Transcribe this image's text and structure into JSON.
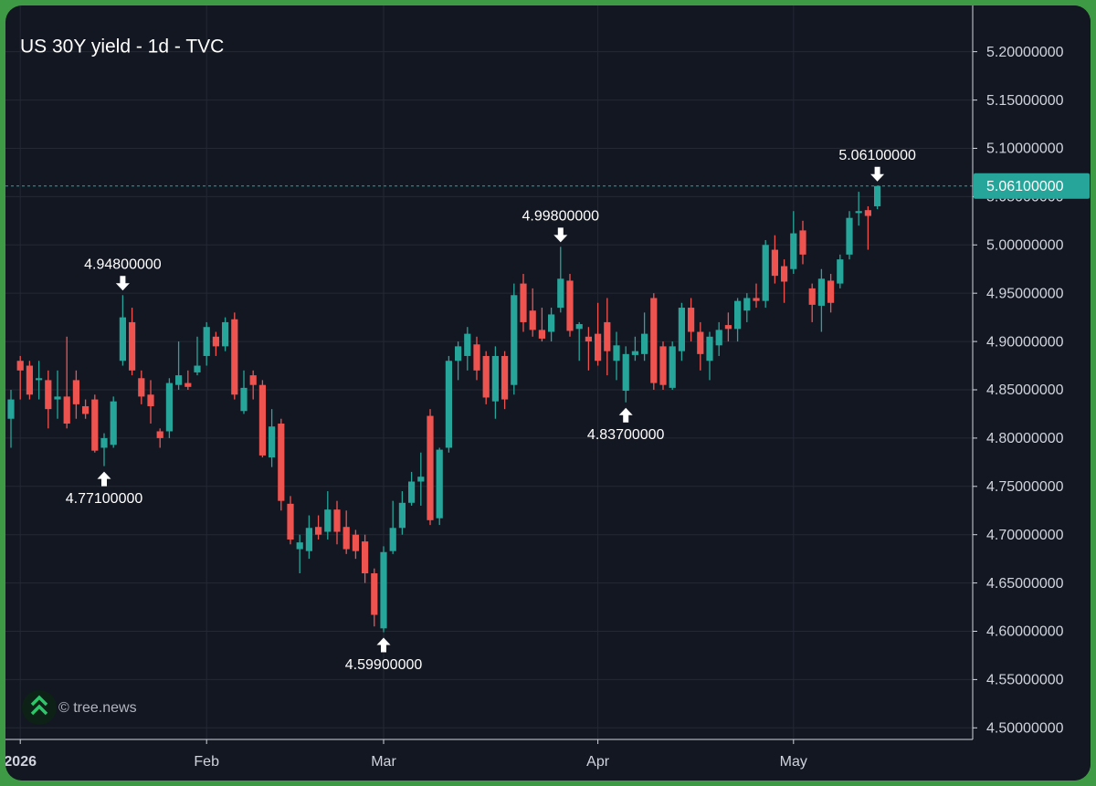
{
  "chart_data": {
    "type": "candlestick",
    "title": "US 30Y yield - 1d - TVC",
    "watermark": "© tree.news",
    "categories": [
      null,
      "2026",
      null,
      null,
      null,
      null,
      null,
      null,
      null,
      null,
      null,
      null,
      null,
      null,
      null,
      null,
      null,
      null,
      null,
      null,
      null,
      "Feb",
      null,
      null,
      null,
      null,
      null,
      null,
      null,
      null,
      null,
      null,
      null,
      null,
      null,
      null,
      null,
      null,
      null,
      null,
      "Mar",
      null,
      null,
      null,
      null,
      null,
      null,
      null,
      null,
      null,
      null,
      null,
      null,
      null,
      null,
      null,
      null,
      null,
      null,
      null,
      null,
      null,
      null,
      "Apr",
      null,
      null,
      null,
      null,
      null,
      null,
      null,
      null,
      null,
      null,
      null,
      null,
      null,
      null,
      null,
      null,
      null,
      null,
      null,
      null,
      "May",
      null,
      null,
      null,
      null,
      null,
      null,
      null,
      null,
      null
    ],
    "open": [
      4.82,
      4.88,
      4.875,
      4.86,
      4.86,
      4.84,
      4.843,
      4.86,
      4.833,
      4.84,
      4.79,
      4.793,
      4.88,
      4.92,
      4.862,
      4.845,
      4.807,
      4.807,
      4.855,
      4.857,
      4.868,
      4.885,
      4.905,
      4.895,
      4.923,
      4.828,
      4.865,
      4.855,
      4.78,
      4.815,
      4.732,
      4.685,
      4.683,
      4.708,
      4.703,
      4.726,
      4.708,
      4.7,
      4.693,
      4.66,
      4.603,
      4.683,
      4.707,
      4.733,
      4.755,
      4.823,
      4.717,
      4.79,
      4.88,
      4.885,
      4.897,
      4.885,
      4.838,
      4.885,
      4.855,
      4.96,
      4.932,
      4.912,
      4.91,
      4.935,
      4.963,
      4.913,
      4.905,
      4.908,
      4.92,
      4.88,
      4.849,
      4.886,
      4.887,
      4.945,
      4.895,
      4.852,
      4.89,
      4.935,
      4.91,
      4.88,
      4.896,
      4.917,
      4.913,
      4.932,
      4.945,
      4.942,
      4.995,
      4.978,
      4.975,
      5.015,
      4.955,
      4.937,
      4.963,
      4.96,
      4.99,
      5.033,
      5.036,
      5.04
    ],
    "high": [
      4.85,
      4.885,
      4.88,
      4.88,
      4.87,
      4.87,
      4.905,
      4.87,
      4.84,
      4.845,
      4.805,
      4.843,
      4.948,
      4.935,
      4.87,
      4.86,
      4.81,
      4.862,
      4.9,
      4.87,
      4.905,
      4.92,
      4.91,
      4.925,
      4.93,
      4.87,
      4.87,
      4.86,
      4.83,
      4.82,
      4.74,
      4.7,
      4.72,
      4.72,
      4.745,
      4.735,
      4.725,
      4.705,
      4.7,
      4.665,
      4.688,
      4.735,
      4.745,
      4.765,
      4.785,
      4.83,
      4.79,
      4.885,
      4.9,
      4.915,
      4.905,
      4.89,
      4.895,
      4.89,
      4.96,
      4.97,
      4.955,
      4.935,
      4.935,
      4.998,
      4.97,
      4.92,
      4.915,
      4.94,
      4.945,
      4.91,
      4.895,
      4.905,
      4.93,
      4.95,
      4.9,
      4.9,
      4.94,
      4.945,
      4.92,
      4.91,
      4.92,
      4.93,
      4.945,
      4.95,
      4.96,
      5.005,
      5.01,
      4.985,
      5.035,
      5.025,
      4.96,
      4.975,
      4.97,
      4.99,
      5.035,
      5.055,
      5.04,
      5.061
    ],
    "low": [
      4.79,
      4.84,
      4.84,
      4.84,
      4.81,
      4.82,
      4.81,
      4.82,
      4.82,
      4.785,
      4.771,
      4.79,
      4.875,
      4.865,
      4.835,
      4.815,
      4.79,
      4.8,
      4.85,
      4.85,
      4.865,
      4.875,
      4.885,
      4.89,
      4.84,
      4.825,
      4.84,
      4.78,
      4.77,
      4.725,
      4.69,
      4.66,
      4.675,
      4.695,
      4.695,
      4.69,
      4.68,
      4.675,
      4.65,
      4.605,
      4.599,
      4.68,
      4.7,
      4.73,
      4.73,
      4.71,
      4.71,
      4.785,
      4.86,
      4.87,
      4.86,
      4.835,
      4.82,
      4.83,
      4.845,
      4.91,
      4.905,
      4.9,
      4.9,
      4.93,
      4.905,
      4.88,
      4.87,
      4.875,
      4.865,
      4.86,
      4.837,
      4.88,
      4.88,
      4.85,
      4.85,
      4.85,
      4.88,
      4.9,
      4.87,
      4.86,
      4.885,
      4.9,
      4.9,
      4.92,
      4.935,
      4.935,
      4.96,
      4.94,
      4.97,
      4.98,
      4.92,
      4.91,
      4.93,
      4.955,
      4.985,
      5.02,
      4.995,
      5.037
    ],
    "close": [
      4.84,
      4.87,
      4.845,
      4.862,
      4.83,
      4.843,
      4.815,
      4.835,
      4.825,
      4.787,
      4.8,
      4.838,
      4.925,
      4.87,
      4.843,
      4.833,
      4.8,
      4.857,
      4.865,
      4.853,
      4.875,
      4.915,
      4.895,
      4.92,
      4.845,
      4.852,
      4.855,
      4.782,
      4.812,
      4.735,
      4.695,
      4.692,
      4.707,
      4.7,
      4.726,
      4.703,
      4.685,
      4.683,
      4.66,
      4.617,
      4.682,
      4.707,
      4.733,
      4.755,
      4.76,
      4.715,
      4.788,
      4.88,
      4.895,
      4.908,
      4.87,
      4.842,
      4.885,
      4.84,
      4.948,
      4.92,
      4.912,
      4.903,
      4.928,
      4.965,
      4.911,
      4.918,
      4.9,
      4.88,
      4.89,
      4.896,
      4.887,
      4.89,
      4.908,
      4.857,
      4.855,
      4.895,
      4.935,
      4.91,
      4.887,
      4.905,
      4.912,
      4.913,
      4.942,
      4.945,
      4.942,
      5.0,
      4.968,
      4.962,
      5.012,
      4.99,
      4.938,
      4.965,
      4.94,
      4.985,
      5.028,
      5.035,
      5.03,
      5.061
    ],
    "up_color": "#26a69a",
    "down_color": "#ef5350",
    "ylim": [
      4.488,
      5.246
    ],
    "yticks": [
      {
        "value": 4.5,
        "label": "4.50000000"
      },
      {
        "value": 4.55,
        "label": "4.55000000"
      },
      {
        "value": 4.6,
        "label": "4.60000000"
      },
      {
        "value": 4.65,
        "label": "4.65000000"
      },
      {
        "value": 4.7,
        "label": "4.70000000"
      },
      {
        "value": 4.75,
        "label": "4.75000000"
      },
      {
        "value": 4.8,
        "label": "4.80000000"
      },
      {
        "value": 4.85,
        "label": "4.85000000"
      },
      {
        "value": 4.9,
        "label": "4.90000000"
      },
      {
        "value": 4.95,
        "label": "4.95000000"
      },
      {
        "value": 5.0,
        "label": "5.00000000"
      },
      {
        "value": 5.05,
        "label": "5.05000000"
      },
      {
        "value": 5.1,
        "label": "5.10000000"
      },
      {
        "value": 5.15,
        "label": "5.15000000"
      },
      {
        "value": 5.2,
        "label": "5.20000000"
      }
    ],
    "grid": true,
    "last_price": {
      "value": 5.061,
      "label": "5.06100000"
    },
    "annotations": [
      {
        "value": 4.948,
        "label": "4.94800000"
      },
      {
        "value": 4.771,
        "label": "4.77100000"
      },
      {
        "value": 4.599,
        "label": "4.59900000"
      },
      {
        "value": 4.998,
        "label": "4.99800000"
      },
      {
        "value": 4.837,
        "label": "4.83700000"
      },
      {
        "value": 5.061,
        "label": "5.06100000"
      }
    ]
  }
}
